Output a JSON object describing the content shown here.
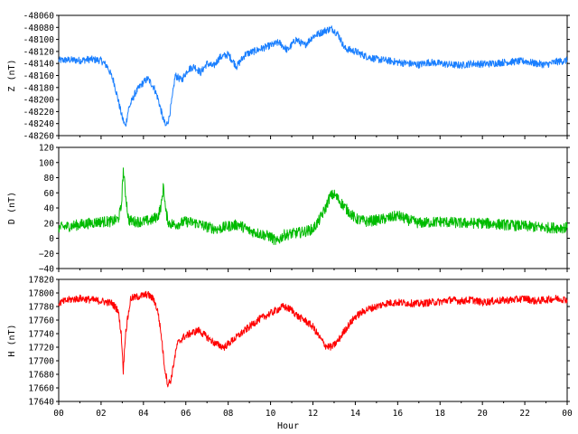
{
  "chart_data": [
    {
      "type": "line",
      "ylabel": "Z (nT)",
      "ylim": [
        -48260,
        -48060
      ],
      "yticks": [
        "-48060",
        "-48080",
        "-48100",
        "-48120",
        "-48140",
        "-48160",
        "-48180",
        "-48200",
        "-48220",
        "-48240",
        "-48260"
      ],
      "grid": false,
      "series": [
        {
          "color": "#1a7fff",
          "x": [
            0,
            0.5,
            1,
            1.5,
            2,
            2.3,
            2.6,
            2.8,
            3.0,
            3.15,
            3.3,
            3.6,
            3.9,
            4.2,
            4.5,
            4.7,
            4.9,
            5.05,
            5.2,
            5.35,
            5.5,
            5.8,
            6.1,
            6.4,
            6.7,
            7,
            7.3,
            7.6,
            8,
            8.4,
            8.8,
            9.2,
            9.6,
            10,
            10.4,
            10.8,
            11.2,
            11.6,
            12,
            12.3,
            12.6,
            12.9,
            13.2,
            13.5,
            14,
            14.5,
            15,
            15.5,
            16,
            16.5,
            17,
            17.5,
            18,
            18.5,
            19,
            19.5,
            20,
            20.5,
            21,
            21.5,
            22,
            22.5,
            23,
            23.5,
            24
          ],
          "y": [
            -48135,
            -48134,
            -48135,
            -48133,
            -48135,
            -48145,
            -48170,
            -48200,
            -48230,
            -48245,
            -48215,
            -48190,
            -48175,
            -48165,
            -48180,
            -48200,
            -48228,
            -48245,
            -48232,
            -48200,
            -48160,
            -48168,
            -48150,
            -48145,
            -48155,
            -48140,
            -48145,
            -48130,
            -48125,
            -48145,
            -48125,
            -48120,
            -48115,
            -48110,
            -48105,
            -48118,
            -48100,
            -48110,
            -48095,
            -48090,
            -48085,
            -48082,
            -48092,
            -48115,
            -48120,
            -48128,
            -48133,
            -48135,
            -48138,
            -48140,
            -48142,
            -48138,
            -48140,
            -48142,
            -48143,
            -48140,
            -48141,
            -48140,
            -48138,
            -48137,
            -48136,
            -48140,
            -48142,
            -48137,
            -48135
          ]
        }
      ]
    },
    {
      "type": "line",
      "ylabel": "D (nT)",
      "ylim": [
        -40,
        120
      ],
      "yticks": [
        "120",
        "100",
        "80",
        "60",
        "40",
        "20",
        "0",
        "−20",
        "−40"
      ],
      "grid": false,
      "series": [
        {
          "color": "#00bb00",
          "x": [
            0,
            0.5,
            1,
            1.5,
            2,
            2.5,
            2.8,
            2.95,
            3.05,
            3.15,
            3.3,
            3.6,
            4,
            4.4,
            4.7,
            4.85,
            4.95,
            5.05,
            5.2,
            5.5,
            6,
            6.5,
            7,
            7.5,
            8,
            8.5,
            9,
            9.5,
            10,
            10.3,
            10.6,
            11,
            11.5,
            12,
            12.3,
            12.6,
            12.8,
            13,
            13.3,
            13.6,
            14,
            14.5,
            15,
            15.5,
            16,
            16.5,
            17,
            18,
            19,
            20,
            21,
            22,
            23,
            24
          ],
          "y": [
            14,
            16,
            18,
            20,
            22,
            22,
            25,
            40,
            90,
            60,
            24,
            22,
            22,
            24,
            30,
            45,
            70,
            35,
            20,
            18,
            22,
            20,
            15,
            12,
            16,
            18,
            10,
            6,
            2,
            -5,
            4,
            6,
            8,
            12,
            24,
            40,
            55,
            58,
            48,
            38,
            26,
            22,
            24,
            26,
            30,
            24,
            20,
            22,
            20,
            20,
            18,
            16,
            14,
            14
          ]
        }
      ]
    },
    {
      "type": "line",
      "ylabel": "H (nT)",
      "xlabel": "Hour",
      "ylim": [
        17640,
        17820
      ],
      "yticks": [
        "17820",
        "17800",
        "17780",
        "17760",
        "17740",
        "17720",
        "17700",
        "17680",
        "17660",
        "17640"
      ],
      "xticks": [
        "00",
        "02",
        "04",
        "06",
        "08",
        "10",
        "12",
        "14",
        "16",
        "18",
        "20",
        "22",
        "00"
      ],
      "xlim": [
        0,
        24
      ],
      "grid": false,
      "series": [
        {
          "color": "#ff0000",
          "x": [
            0,
            0.5,
            1,
            1.5,
            2,
            2.5,
            2.8,
            2.95,
            3.05,
            3.15,
            3.4,
            3.8,
            4.2,
            4.5,
            4.7,
            4.85,
            5.0,
            5.15,
            5.3,
            5.45,
            5.6,
            5.9,
            6.2,
            6.6,
            7,
            7.4,
            7.8,
            8.2,
            8.6,
            9,
            9.4,
            9.7,
            10,
            10.3,
            10.6,
            11,
            11.3,
            11.6,
            12,
            12.3,
            12.6,
            12.9,
            13.2,
            13.5,
            14,
            14.5,
            15,
            15.5,
            16,
            16.5,
            17,
            17.5,
            18,
            18.5,
            19,
            19.5,
            20,
            20.5,
            21,
            21.5,
            22,
            22.5,
            23,
            23.5,
            24
          ],
          "y": [
            17785,
            17790,
            17792,
            17790,
            17788,
            17785,
            17775,
            17740,
            17685,
            17740,
            17792,
            17795,
            17798,
            17790,
            17770,
            17735,
            17690,
            17665,
            17672,
            17700,
            17725,
            17735,
            17740,
            17745,
            17735,
            17725,
            17720,
            17730,
            17740,
            17750,
            17760,
            17765,
            17770,
            17775,
            17780,
            17775,
            17765,
            17760,
            17750,
            17735,
            17722,
            17720,
            17730,
            17745,
            17765,
            17775,
            17780,
            17785,
            17786,
            17785,
            17784,
            17786,
            17787,
            17790,
            17788,
            17790,
            17786,
            17788,
            17789,
            17790,
            17792,
            17788,
            17790,
            17792,
            17790
          ]
        }
      ]
    }
  ]
}
